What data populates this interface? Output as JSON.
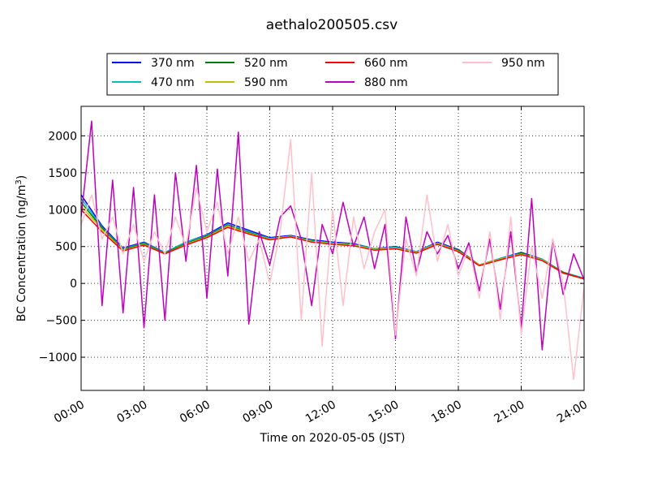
{
  "chart_data": {
    "type": "line",
    "title": "aethalo200505.csv",
    "xlabel": "Time on 2020-05-05 (JST)",
    "ylabel": "BC Concentration (ng/m³)",
    "ylabel_parts": [
      "BC Concentration (ng/m",
      "3",
      ")"
    ],
    "xlim": [
      "2020-05-05 00:00",
      "2020-05-06 00:00"
    ],
    "ylim": [
      -1450,
      2400
    ],
    "grid": true,
    "legend_position": "top-center",
    "x_ticks": [
      "00:00",
      "03:00",
      "06:00",
      "09:00",
      "12:00",
      "15:00",
      "18:00",
      "21:00",
      "24:00"
    ],
    "x_tick_hours": [
      0,
      3,
      6,
      9,
      12,
      15,
      18,
      21,
      24
    ],
    "y_ticks": [
      2000,
      1500,
      1000,
      500,
      0,
      -500,
      -1000
    ],
    "y_tick_labels": [
      "2000",
      "1500",
      "1000",
      "500",
      "0",
      "−500",
      "−1000"
    ],
    "series": [
      {
        "name": "370 nm",
        "color": "#0000ff",
        "x_hours": [
          0,
          1,
          2,
          3,
          4,
          5,
          6,
          7,
          8,
          9,
          10,
          11,
          12,
          13,
          14,
          15,
          16,
          17,
          18,
          19,
          20,
          21,
          22,
          23,
          24
        ],
        "values": [
          1200,
          780,
          480,
          560,
          420,
          560,
          660,
          820,
          720,
          620,
          650,
          590,
          560,
          540,
          470,
          500,
          430,
          560,
          460,
          250,
          340,
          420,
          330,
          150,
          70
        ]
      },
      {
        "name": "470 nm",
        "color": "#00bfbf",
        "x_hours": [
          0,
          1,
          2,
          3,
          4,
          5,
          6,
          7,
          8,
          9,
          10,
          11,
          12,
          13,
          14,
          15,
          16,
          17,
          18,
          19,
          20,
          21,
          22,
          23,
          24
        ],
        "values": [
          1150,
          760,
          470,
          550,
          420,
          560,
          650,
          800,
          700,
          610,
          640,
          580,
          550,
          530,
          470,
          490,
          430,
          550,
          450,
          250,
          340,
          410,
          330,
          150,
          70
        ]
      },
      {
        "name": "520 nm",
        "color": "#008000",
        "x_hours": [
          0,
          1,
          2,
          3,
          4,
          5,
          6,
          7,
          8,
          9,
          10,
          11,
          12,
          13,
          14,
          15,
          16,
          17,
          18,
          19,
          20,
          21,
          22,
          23,
          24
        ],
        "values": [
          1100,
          750,
          460,
          540,
          410,
          540,
          640,
          790,
          690,
          600,
          630,
          570,
          540,
          520,
          460,
          480,
          420,
          540,
          450,
          250,
          330,
          410,
          320,
          150,
          60
        ]
      },
      {
        "name": "590 nm",
        "color": "#bfbf00",
        "x_hours": [
          0,
          1,
          2,
          3,
          4,
          5,
          6,
          7,
          8,
          9,
          10,
          11,
          12,
          13,
          14,
          15,
          16,
          17,
          18,
          19,
          20,
          21,
          22,
          23,
          24
        ],
        "values": [
          1050,
          730,
          450,
          530,
          400,
          530,
          630,
          780,
          680,
          600,
          640,
          570,
          540,
          520,
          460,
          480,
          420,
          540,
          440,
          250,
          330,
          400,
          320,
          140,
          60
        ]
      },
      {
        "name": "660 nm",
        "color": "#ff0000",
        "x_hours": [
          0,
          1,
          2,
          3,
          4,
          5,
          6,
          7,
          8,
          9,
          10,
          11,
          12,
          13,
          14,
          15,
          16,
          17,
          18,
          19,
          20,
          21,
          22,
          23,
          24
        ],
        "values": [
          1000,
          700,
          440,
          520,
          400,
          520,
          620,
          760,
          670,
          590,
          630,
          560,
          530,
          510,
          450,
          470,
          410,
          530,
          430,
          240,
          320,
          390,
          310,
          140,
          60
        ]
      },
      {
        "name": "880 nm",
        "color": "#bf00bf",
        "x_hours": [
          0,
          0.5,
          1,
          1.5,
          2,
          2.5,
          3,
          3.5,
          4,
          4.5,
          5,
          5.5,
          6,
          6.5,
          7,
          7.5,
          8,
          8.5,
          9,
          9.5,
          10,
          10.5,
          11,
          11.5,
          12,
          12.5,
          13,
          13.5,
          14,
          14.5,
          15,
          15.5,
          16,
          16.5,
          17,
          17.5,
          18,
          18.5,
          19,
          19.5,
          20,
          20.5,
          21,
          21.5,
          22,
          22.5,
          23,
          23.5,
          24
        ],
        "values": [
          900,
          2200,
          -300,
          1400,
          -400,
          1300,
          -600,
          1200,
          -500,
          1500,
          300,
          1600,
          -200,
          1550,
          100,
          2050,
          -550,
          700,
          250,
          900,
          1050,
          600,
          -300,
          800,
          400,
          1100,
          500,
          900,
          200,
          800,
          -750,
          900,
          150,
          700,
          400,
          650,
          200,
          550,
          -100,
          600,
          -350,
          700,
          -600,
          1150,
          -900,
          600,
          -150,
          400,
          50
        ]
      },
      {
        "name": "950 nm",
        "color": "#ffc0cb",
        "x_hours": [
          0,
          0.5,
          1,
          1.5,
          2,
          2.5,
          3,
          3.5,
          4,
          4.5,
          5,
          5.5,
          6,
          6.5,
          7,
          7.5,
          8,
          8.5,
          9,
          9.5,
          10,
          10.5,
          11,
          11.5,
          12,
          12.5,
          13,
          13.5,
          14,
          14.5,
          15,
          15.5,
          16,
          16.5,
          17,
          17.5,
          18,
          18.5,
          19,
          19.5,
          20,
          20.5,
          21,
          21.5,
          22,
          22.5,
          23,
          23.5,
          24
        ],
        "values": [
          800,
          1200,
          600,
          900,
          400,
          800,
          300,
          700,
          400,
          900,
          500,
          1300,
          700,
          1100,
          400,
          900,
          300,
          600,
          0,
          700,
          1950,
          -500,
          1500,
          -850,
          1000,
          -300,
          900,
          200,
          700,
          1000,
          -700,
          600,
          100,
          1200,
          300,
          800,
          100,
          500,
          -200,
          700,
          -500,
          900,
          -700,
          500,
          -200,
          600,
          0,
          -1300,
          -50
        ]
      }
    ]
  }
}
